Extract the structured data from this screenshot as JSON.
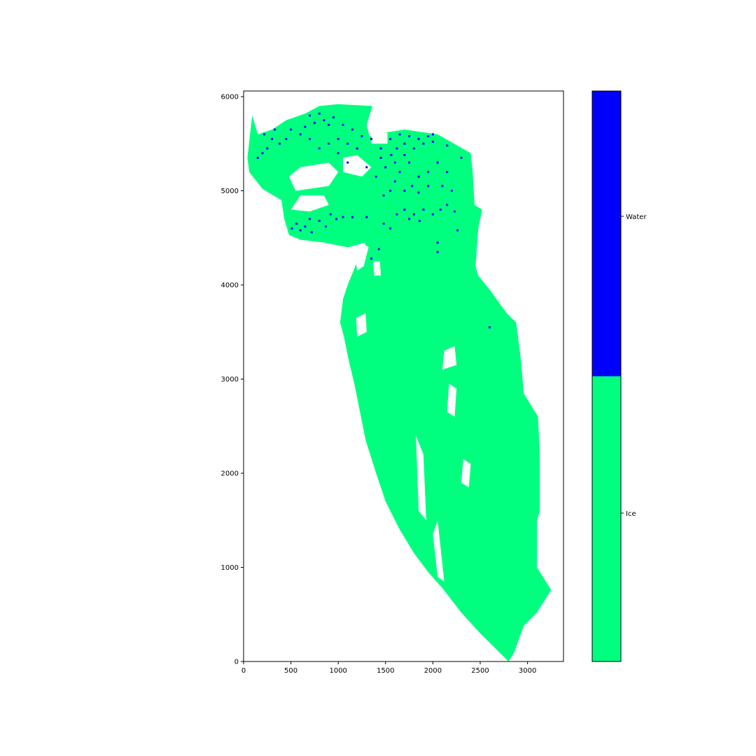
{
  "chart_data": {
    "type": "heatmap",
    "title": "",
    "xlabel": "",
    "ylabel": "",
    "xlim": [
      0,
      3380
    ],
    "ylim": [
      6060,
      0
    ],
    "xticks": [
      0,
      500,
      1000,
      1500,
      2000,
      2500,
      3000
    ],
    "yticks": [
      0,
      1000,
      2000,
      3000,
      4000,
      5000,
      6000
    ],
    "grid": false,
    "classes": [
      {
        "name": "Ice",
        "color": "#00ff7f"
      },
      {
        "name": "Water",
        "color": "#0000ff"
      }
    ],
    "colorbar": {
      "placement": "right",
      "labels": [
        "Ice",
        "Water"
      ]
    },
    "regions": {
      "ice_outline": [
        [
          2800,
          0
        ],
        [
          2860,
          100
        ],
        [
          2960,
          380
        ],
        [
          3100,
          520
        ],
        [
          3250,
          760
        ],
        [
          3100,
          1000
        ],
        [
          3100,
          1500
        ],
        [
          3130,
          1600
        ],
        [
          3130,
          2200
        ],
        [
          3110,
          2600
        ],
        [
          2960,
          2850
        ],
        [
          2930,
          3200
        ],
        [
          2880,
          3600
        ],
        [
          2780,
          3700
        ],
        [
          2600,
          3950
        ],
        [
          2480,
          4100
        ],
        [
          2450,
          4200
        ],
        [
          2480,
          4600
        ],
        [
          2520,
          4800
        ],
        [
          2440,
          4850
        ],
        [
          2420,
          5200
        ],
        [
          2400,
          5400
        ],
        [
          2050,
          5600
        ],
        [
          1700,
          5650
        ],
        [
          1500,
          5620
        ],
        [
          1330,
          5580
        ],
        [
          1300,
          5700
        ],
        [
          1360,
          5900
        ],
        [
          1000,
          5920
        ],
        [
          800,
          5900
        ],
        [
          650,
          5820
        ],
        [
          450,
          5750
        ],
        [
          300,
          5650
        ],
        [
          150,
          5600
        ],
        [
          90,
          5800
        ],
        [
          40,
          5350
        ],
        [
          60,
          5200
        ],
        [
          200,
          5020
        ],
        [
          400,
          4900
        ],
        [
          430,
          4700
        ],
        [
          480,
          4530
        ],
        [
          600,
          4480
        ],
        [
          850,
          4450
        ],
        [
          1100,
          4400
        ],
        [
          1290,
          4450
        ],
        [
          1220,
          4300
        ],
        [
          1100,
          4000
        ],
        [
          1050,
          3850
        ],
        [
          1020,
          3600
        ],
        [
          1060,
          3450
        ],
        [
          1110,
          3200
        ],
        [
          1170,
          2950
        ],
        [
          1230,
          2650
        ],
        [
          1290,
          2350
        ],
        [
          1400,
          2000
        ],
        [
          1500,
          1700
        ],
        [
          1650,
          1400
        ],
        [
          1800,
          1150
        ],
        [
          1950,
          950
        ],
        [
          2100,
          780
        ],
        [
          2300,
          520
        ],
        [
          2500,
          300
        ],
        [
          2700,
          100
        ]
      ],
      "gaps": [
        [
          [
            1200,
            4150
          ],
          [
            1270,
            4200
          ],
          [
            1320,
            4400
          ],
          [
            1250,
            4450
          ],
          [
            1180,
            4300
          ]
        ],
        [
          [
            500,
            4800
          ],
          [
            700,
            4780
          ],
          [
            900,
            4850
          ],
          [
            850,
            4950
          ],
          [
            600,
            4950
          ]
        ],
        [
          [
            550,
            5000
          ],
          [
            900,
            5050
          ],
          [
            1000,
            5200
          ],
          [
            900,
            5300
          ],
          [
            600,
            5250
          ],
          [
            480,
            5150
          ]
        ],
        [
          [
            1050,
            5200
          ],
          [
            1250,
            5150
          ],
          [
            1350,
            5250
          ],
          [
            1200,
            5380
          ],
          [
            1050,
            5350
          ]
        ],
        [
          [
            1350,
            5500
          ],
          [
            1520,
            5500
          ],
          [
            1520,
            5620
          ],
          [
            1350,
            5600
          ]
        ],
        [
          [
            2650,
            3950
          ],
          [
            2760,
            3900
          ],
          [
            2780,
            4250
          ],
          [
            2650,
            4250
          ],
          [
            2600,
            4100
          ]
        ],
        [
          [
            1850,
            1600
          ],
          [
            1930,
            1500
          ],
          [
            1900,
            2200
          ],
          [
            1820,
            2400
          ]
        ],
        [
          [
            2050,
            900
          ],
          [
            2120,
            850
          ],
          [
            2050,
            1500
          ],
          [
            2000,
            1350
          ]
        ],
        [
          [
            2300,
            1900
          ],
          [
            2380,
            1850
          ],
          [
            2400,
            2100
          ],
          [
            2320,
            2150
          ]
        ],
        [
          [
            2150,
            2650
          ],
          [
            2230,
            2600
          ],
          [
            2250,
            2900
          ],
          [
            2170,
            2950
          ]
        ],
        [
          [
            2100,
            3100
          ],
          [
            2250,
            3150
          ],
          [
            2230,
            3350
          ],
          [
            2120,
            3300
          ]
        ],
        [
          [
            1200,
            3450
          ],
          [
            1300,
            3500
          ],
          [
            1290,
            3700
          ],
          [
            1190,
            3650
          ]
        ],
        [
          [
            1380,
            4100
          ],
          [
            1450,
            4100
          ],
          [
            1440,
            4250
          ],
          [
            1370,
            4250
          ]
        ]
      ],
      "water_points": [
        [
          510,
          4600
        ],
        [
          560,
          4650
        ],
        [
          600,
          4580
        ],
        [
          650,
          4620
        ],
        [
          700,
          4700
        ],
        [
          720,
          4560
        ],
        [
          800,
          4680
        ],
        [
          870,
          4620
        ],
        [
          920,
          4750
        ],
        [
          980,
          4700
        ],
        [
          1050,
          4720
        ],
        [
          1150,
          4720
        ],
        [
          1300,
          4720
        ],
        [
          1480,
          4650
        ],
        [
          1550,
          4600
        ],
        [
          1620,
          4750
        ],
        [
          1700,
          4800
        ],
        [
          1750,
          4700
        ],
        [
          1800,
          4750
        ],
        [
          1860,
          4680
        ],
        [
          1900,
          4800
        ],
        [
          2000,
          4750
        ],
        [
          2080,
          4800
        ],
        [
          2150,
          4850
        ],
        [
          2230,
          4780
        ],
        [
          2050,
          4350
        ],
        [
          2050,
          4450
        ],
        [
          2260,
          4580
        ],
        [
          1480,
          4950
        ],
        [
          1550,
          5000
        ],
        [
          1600,
          5100
        ],
        [
          1700,
          5000
        ],
        [
          1780,
          5050
        ],
        [
          1850,
          4980
        ],
        [
          1950,
          5050
        ],
        [
          2100,
          5050
        ],
        [
          2200,
          5000
        ],
        [
          1400,
          5150
        ],
        [
          1300,
          5250
        ],
        [
          1450,
          5350
        ],
        [
          1600,
          5300
        ],
        [
          1700,
          5380
        ],
        [
          1800,
          5450
        ],
        [
          1900,
          5500
        ],
        [
          2000,
          5520
        ],
        [
          2150,
          5480
        ],
        [
          1550,
          5550
        ],
        [
          1650,
          5600
        ],
        [
          1750,
          5580
        ],
        [
          1850,
          5550
        ],
        [
          1950,
          5580
        ],
        [
          1200,
          5450
        ],
        [
          1100,
          5500
        ],
        [
          1000,
          5550
        ],
        [
          900,
          5500
        ],
        [
          800,
          5450
        ],
        [
          700,
          5550
        ],
        [
          600,
          5600
        ],
        [
          500,
          5650
        ],
        [
          450,
          5550
        ],
        [
          380,
          5500
        ],
        [
          300,
          5550
        ],
        [
          250,
          5450
        ],
        [
          200,
          5400
        ],
        [
          150,
          5350
        ],
        [
          220,
          5600
        ],
        [
          330,
          5650
        ],
        [
          650,
          5680
        ],
        [
          750,
          5720
        ],
        [
          850,
          5750
        ],
        [
          950,
          5780
        ],
        [
          1050,
          5700
        ],
        [
          1150,
          5650
        ],
        [
          1250,
          5580
        ],
        [
          1350,
          5550
        ],
        [
          1450,
          5450
        ],
        [
          1500,
          5250
        ],
        [
          1650,
          5200
        ],
        [
          1750,
          5300
        ],
        [
          1850,
          5150
        ],
        [
          1950,
          5200
        ],
        [
          2050,
          5300
        ],
        [
          2150,
          5200
        ],
        [
          2300,
          5350
        ],
        [
          700,
          5800
        ],
        [
          800,
          5820
        ],
        [
          900,
          5700
        ],
        [
          1000,
          5400
        ],
        [
          1100,
          5300
        ],
        [
          1350,
          4280
        ],
        [
          1430,
          4380
        ],
        [
          2600,
          3550
        ],
        [
          2000,
          5600
        ],
        [
          1620,
          5450
        ],
        [
          1560,
          5380
        ],
        [
          1700,
          5500
        ]
      ]
    }
  }
}
